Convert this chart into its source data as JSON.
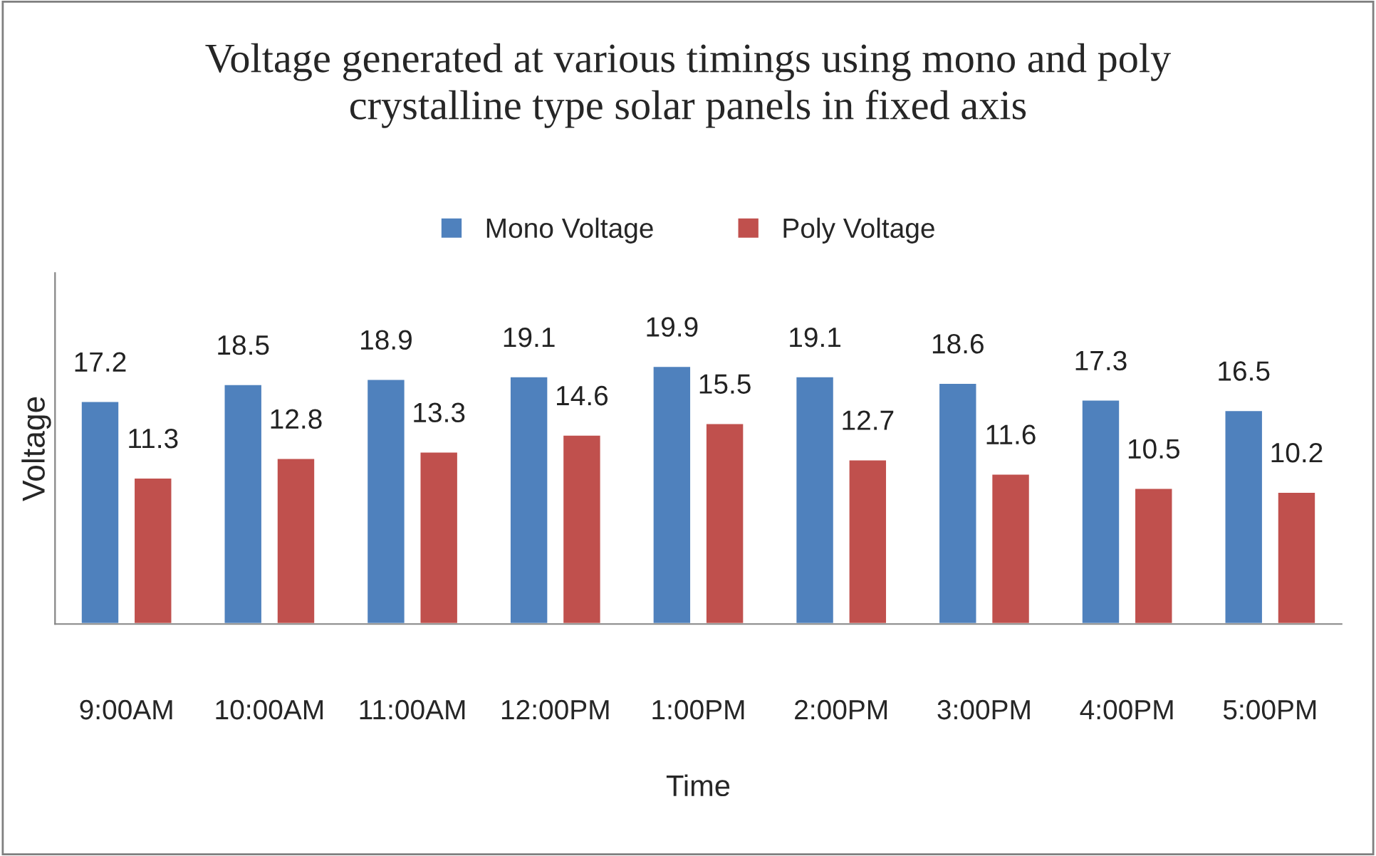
{
  "chart_data": {
    "type": "bar",
    "title": "Voltage generated at various timings using mono and poly\ncrystalline type solar panels in fixed axis",
    "xlabel": "Time",
    "ylabel": "Voltage",
    "categories": [
      "9:00AM",
      "10:00AM",
      "11:00AM",
      "12:00PM",
      "1:00PM",
      "2:00PM",
      "3:00PM",
      "4:00PM",
      "5:00PM"
    ],
    "series": [
      {
        "name": "Mono Voltage",
        "color": "#4f81bd",
        "values": [
          17.2,
          18.5,
          18.9,
          19.1,
          19.9,
          19.1,
          18.6,
          17.3,
          16.5
        ]
      },
      {
        "name": "Poly Voltage",
        "color": "#c0504d",
        "values": [
          11.3,
          12.8,
          13.3,
          14.6,
          15.5,
          12.7,
          11.6,
          10.5,
          10.2
        ]
      }
    ],
    "data_labels": true,
    "legend": "top",
    "grid": false,
    "tick_labels": "x"
  }
}
